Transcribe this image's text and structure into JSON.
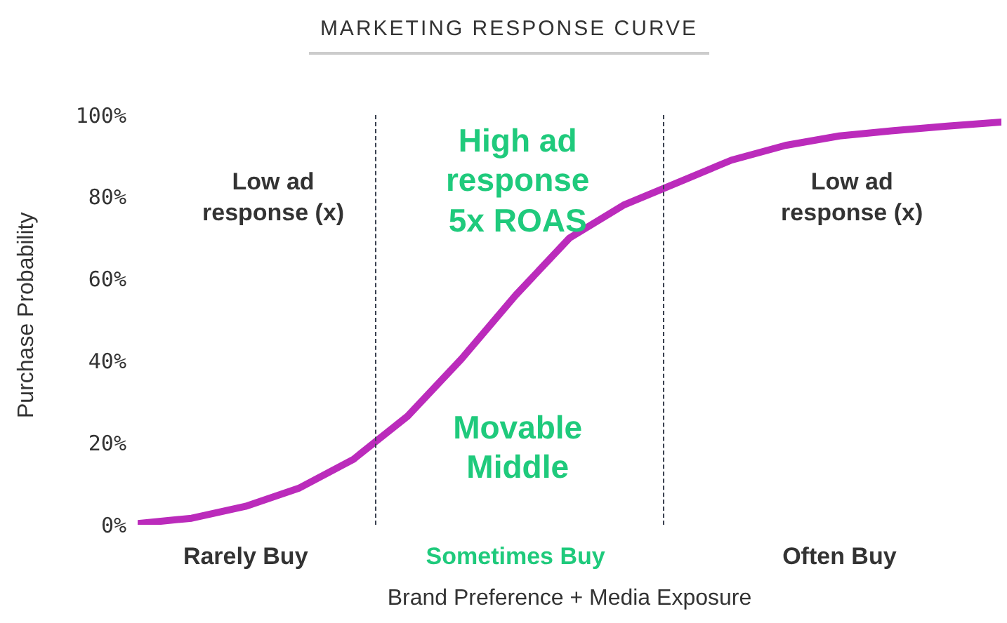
{
  "chart_data": {
    "type": "line",
    "title": "MARKETING RESPONSE CURVE",
    "xlabel": "Brand Preference + Media Exposure",
    "ylabel": "Purchase Probability",
    "categories": [
      null,
      null,
      "Rarely Buy",
      null,
      null,
      null,
      null,
      "Sometimes Buy",
      null,
      null,
      null,
      null,
      null,
      "Often Buy",
      null,
      null,
      null
    ],
    "series": [
      {
        "color": "#bb2bbb",
        "values": [
          0.3,
          1.6,
          4.5,
          9,
          16,
          26.5,
          40.5,
          56,
          70,
          78,
          83.5,
          89,
          92.6,
          94.9,
          96.2,
          97.3,
          98.3
        ]
      }
    ],
    "ylim": [
      0,
      100
    ],
    "yticks": [
      {
        "value": 0,
        "label": "0%"
      },
      {
        "value": 20,
        "label": "20%"
      },
      {
        "value": 40,
        "label": "40%"
      },
      {
        "value": 60,
        "label": "60%"
      },
      {
        "value": 80,
        "label": "80%"
      },
      {
        "value": 100,
        "label": "100%"
      }
    ],
    "grid": false,
    "legend": false,
    "marker": "none",
    "line_style": "solid",
    "annotations": [
      "Low ad response (x)",
      "High ad response 5x ROAS",
      "Movable Middle",
      "Low ad response (x)"
    ]
  }
}
